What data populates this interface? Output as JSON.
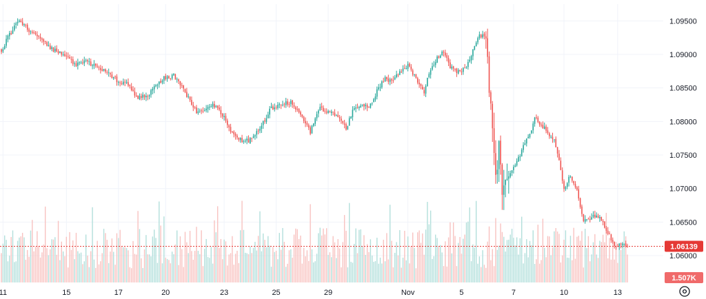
{
  "colors": {
    "up": "#26a69a",
    "down": "#ef5350",
    "up_volume": "#b2dfdb",
    "down_volume": "#f8c2c0",
    "grid": "#f0f3fa",
    "axis_text": "#131722",
    "last_price_badge": "#e53935",
    "volume_badge": "#f06a6a"
  },
  "settings_icon": "settings-gear-icon",
  "chart_data": {
    "type": "candlestick",
    "instrument_hint": "EURUSD 1H style",
    "ylim": [
      1.056,
      1.0975
    ],
    "y_ticks": [
      "1.09500",
      "1.09000",
      "1.08500",
      "1.08000",
      "1.07500",
      "1.07000",
      "1.06500",
      "1.06000"
    ],
    "x_ticks": [
      {
        "label": "11",
        "index": 1
      },
      {
        "label": "15",
        "index": 40
      },
      {
        "label": "17",
        "index": 72
      },
      {
        "label": "20",
        "index": 101
      },
      {
        "label": "23",
        "index": 137
      },
      {
        "label": "25",
        "index": 169
      },
      {
        "label": "29",
        "index": 201
      },
      {
        "label": "Nov",
        "index": 250
      },
      {
        "label": "5",
        "index": 283
      },
      {
        "label": "7",
        "index": 315
      },
      {
        "label": "10",
        "index": 346
      },
      {
        "label": "13",
        "index": 379
      }
    ],
    "close_anchors": [
      [
        0,
        1.0905
      ],
      [
        4,
        1.0925
      ],
      [
        10,
        1.095
      ],
      [
        16,
        1.0938
      ],
      [
        22,
        1.093
      ],
      [
        30,
        1.091
      ],
      [
        38,
        1.09
      ],
      [
        45,
        1.0885
      ],
      [
        52,
        1.089
      ],
      [
        60,
        1.088
      ],
      [
        66,
        1.087
      ],
      [
        72,
        1.086
      ],
      [
        78,
        1.0855
      ],
      [
        84,
        1.0835
      ],
      [
        90,
        1.084
      ],
      [
        96,
        1.0855
      ],
      [
        100,
        1.0865
      ],
      [
        106,
        1.0868
      ],
      [
        112,
        1.085
      ],
      [
        116,
        1.083
      ],
      [
        120,
        1.0815
      ],
      [
        126,
        1.082
      ],
      [
        130,
        1.0825
      ],
      [
        136,
        1.081
      ],
      [
        140,
        1.079
      ],
      [
        145,
        1.0775
      ],
      [
        150,
        1.077
      ],
      [
        155,
        1.0775
      ],
      [
        160,
        1.0795
      ],
      [
        166,
        1.082
      ],
      [
        172,
        1.0825
      ],
      [
        178,
        1.083
      ],
      [
        184,
        1.081
      ],
      [
        190,
        1.0785
      ],
      [
        196,
        1.082
      ],
      [
        202,
        1.0815
      ],
      [
        208,
        1.0805
      ],
      [
        212,
        1.079
      ],
      [
        216,
        1.0815
      ],
      [
        220,
        1.0825
      ],
      [
        226,
        1.082
      ],
      [
        232,
        1.085
      ],
      [
        236,
        1.0865
      ],
      [
        240,
        1.086
      ],
      [
        246,
        1.0875
      ],
      [
        250,
        1.0885
      ],
      [
        256,
        1.086
      ],
      [
        260,
        1.0845
      ],
      [
        264,
        1.088
      ],
      [
        268,
        1.0895
      ],
      [
        272,
        1.0905
      ],
      [
        276,
        1.088
      ],
      [
        280,
        1.0875
      ],
      [
        286,
        1.088
      ],
      [
        290,
        1.0905
      ],
      [
        294,
        1.093
      ],
      [
        298,
        1.0925
      ],
      [
        300,
        1.085
      ],
      [
        302,
        1.079
      ],
      [
        304,
        1.071
      ],
      [
        306,
        1.076
      ],
      [
        308,
        1.07
      ],
      [
        310,
        1.071
      ],
      [
        314,
        1.073
      ],
      [
        318,
        1.0745
      ],
      [
        322,
        1.077
      ],
      [
        326,
        1.079
      ],
      [
        328,
        1.0805
      ],
      [
        332,
        1.0795
      ],
      [
        336,
        1.0785
      ],
      [
        340,
        1.077
      ],
      [
        344,
        1.073
      ],
      [
        346,
        1.07
      ],
      [
        350,
        1.072
      ],
      [
        354,
        1.07
      ],
      [
        358,
        1.065
      ],
      [
        362,
        1.0655
      ],
      [
        366,
        1.066
      ],
      [
        370,
        1.065
      ],
      [
        374,
        1.063
      ],
      [
        378,
        1.061
      ],
      [
        382,
        1.062
      ],
      [
        385,
        1.06139
      ]
    ],
    "last_price": "1.06139",
    "last_volume": "1.507K",
    "last_price_value": 1.06139
  }
}
